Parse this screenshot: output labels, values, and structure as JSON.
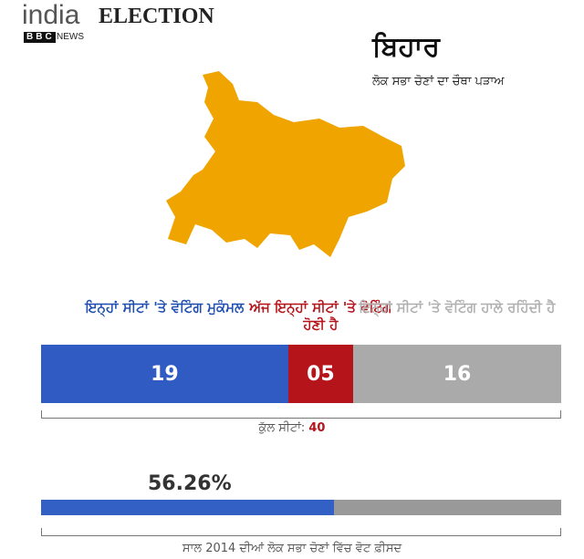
{
  "header": {
    "brand": "india",
    "title": "ELECTION",
    "logo": "BBC",
    "logo_sub": "NEWS"
  },
  "state": {
    "name": "ਬਿਹਾਰ",
    "subtitle": "ਲੋਕ ਸਭਾ ਚੋਣਾਂ ਦਾ ਚੌਥਾ ਪੜਾਅ",
    "map_color": "#f0a400"
  },
  "seats": {
    "segments": [
      {
        "label": "ਇਨ੍ਹਾਂ ਸੀਟਾਂ 'ਤੇ ਵੋਟਿੰਗ ਮੁਕੰਮਲ",
        "value": 19,
        "value_label": "19",
        "color": "#2f5bc2",
        "label_color": "#1f4fb0"
      },
      {
        "label": "ਅੱਜ ਇਨ੍ਹਾਂ ਸੀਟਾਂ 'ਤੇ ਵੋਟਿੰਗ ਹੋਣੀ ਹੈ",
        "value": 5,
        "value_label": "05",
        "color": "#b5141b",
        "label_color": "#b5141b"
      },
      {
        "label": "ਇਨ੍ਹਾਂ ਸੀਟਾਂ 'ਤੇ ਵੋਟਿੰਗ ਹਾਲੇ ਰਹਿੰਦੀ ਹੈ",
        "value": 16,
        "value_label": "16",
        "color": "#aaaaaa",
        "label_color": "#b0b0b0"
      }
    ],
    "total_label": "ਕੁੱਲ ਸੀਟਾਂ:",
    "total": 40
  },
  "turnout": {
    "value": 56.26,
    "value_label": "56.26%",
    "range": [
      0,
      100
    ],
    "color": "#3360c4",
    "track_color": "#999999",
    "caption": "ਸਾਲ 2014 ਦੀਆਂ ਲੋਕ ਸਭਾ ਚੋਣਾਂ ਵਿੱਚ ਵੋਟ ਫ਼ੀਸਦ"
  }
}
